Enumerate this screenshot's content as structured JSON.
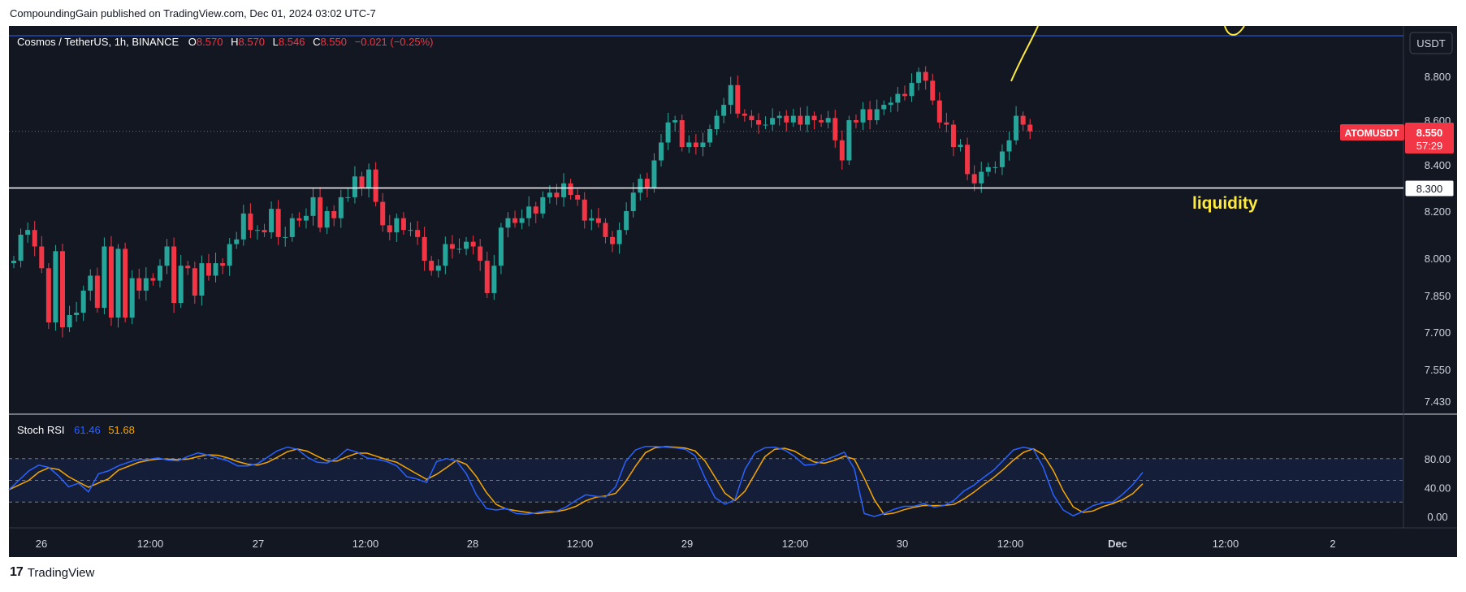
{
  "publisher_line": "CompoundingGain published on TradingView.com, Dec 01, 2024 03:02 UTC-7",
  "footer_brand": "TradingView",
  "colors": {
    "background": "#131722",
    "up": "#26a69a",
    "down": "#f23645",
    "text": "#d1d4dc",
    "stoch_k": "#2962ff",
    "stoch_d": "#f7a600",
    "annotation": "#ffeb3b",
    "price_label": "#f23645"
  },
  "header": {
    "symbol": "Cosmos / TetherUS, 1h, BINANCE",
    "o_label": "O",
    "o": "8.570",
    "h_label": "H",
    "h": "8.570",
    "l_label": "L",
    "l": "8.546",
    "c_label": "C",
    "c": "8.550",
    "change": "−0.021 (−0.25%)"
  },
  "currency_label": "USDT",
  "price_tag": {
    "ticker": "ATOMUSDT",
    "price": "8.550",
    "countdown": "57:29"
  },
  "level_tag": "8.300",
  "annotation_text": "liquidity",
  "stoch": {
    "name": "Stoch RSI",
    "k": "61.46",
    "d": "51.68"
  },
  "chart_data": [
    {
      "type": "candlestick",
      "title": "Cosmos / TetherUS, 1h, BINANCE",
      "y_ticks": [
        "8.800",
        "8.600",
        "8.400",
        "8.200",
        "8.000",
        "7.850",
        "7.700",
        "7.550",
        "7.430"
      ],
      "x_ticks": [
        "26",
        "12:00",
        "27",
        "12:00",
        "28",
        "12:00",
        "29",
        "12:00",
        "30",
        "12:00",
        "Dec",
        "12:00",
        "2"
      ],
      "horizontal_level": 8.3,
      "last_price": 8.55,
      "closes": [
        7.99,
        8.1,
        8.12,
        8.05,
        7.96,
        7.74,
        8.03,
        7.72,
        7.77,
        7.78,
        7.87,
        7.93,
        7.8,
        8.05,
        7.76,
        8.04,
        7.76,
        7.92,
        7.87,
        7.92,
        7.91,
        7.97,
        8.05,
        7.82,
        7.97,
        7.96,
        7.85,
        7.98,
        7.93,
        7.98,
        7.97,
        8.06,
        8.08,
        8.19,
        8.12,
        8.12,
        8.11,
        8.21,
        8.09,
        8.09,
        8.17,
        8.16,
        8.18,
        8.26,
        8.13,
        8.2,
        8.17,
        8.26,
        8.26,
        8.35,
        8.3,
        8.38,
        8.24,
        8.14,
        8.11,
        8.17,
        8.12,
        8.12,
        8.09,
        7.99,
        7.95,
        7.97,
        8.06,
        8.04,
        8.04,
        8.07,
        8.05,
        7.99,
        7.86,
        7.97,
        8.13,
        8.17,
        8.15,
        8.17,
        8.22,
        8.19,
        8.26,
        8.28,
        8.26,
        8.32,
        8.27,
        8.25,
        8.16,
        8.17,
        8.15,
        8.09,
        8.06,
        8.12,
        8.2,
        8.28,
        8.34,
        8.3,
        8.42,
        8.5,
        8.59,
        8.6,
        8.48,
        8.5,
        8.48,
        8.5,
        8.56,
        8.62,
        8.67,
        8.76,
        8.63,
        8.62,
        8.6,
        8.58,
        8.58,
        8.61,
        8.62,
        8.59,
        8.62,
        8.58,
        8.62,
        8.6,
        8.59,
        8.61,
        8.51,
        8.42,
        8.6,
        8.59,
        8.65,
        8.6,
        8.65,
        8.67,
        8.68,
        8.72,
        8.71,
        8.77,
        8.82,
        8.78,
        8.69,
        8.59,
        8.58,
        8.48,
        8.49,
        8.36,
        8.32,
        8.37,
        8.39,
        8.39,
        8.46,
        8.51,
        8.62,
        8.58,
        8.55
      ],
      "k_values": [
        37,
        50,
        63,
        71,
        68,
        56,
        41,
        46,
        34,
        59,
        63,
        70,
        75,
        79,
        79,
        81,
        78,
        77,
        83,
        88,
        85,
        81,
        77,
        70,
        70,
        73,
        82,
        91,
        96,
        93,
        82,
        75,
        74,
        81,
        93,
        89,
        81,
        79,
        76,
        70,
        55,
        52,
        47,
        76,
        80,
        77,
        59,
        30,
        11,
        9,
        11,
        4,
        3,
        5,
        8,
        7,
        13,
        22,
        30,
        28,
        27,
        41,
        76,
        92,
        97,
        97,
        96,
        95,
        93,
        84,
        53,
        26,
        17,
        23,
        65,
        88,
        95,
        96,
        92,
        83,
        71,
        72,
        78,
        83,
        89,
        66,
        4,
        0,
        4,
        10,
        14,
        14,
        18,
        13,
        15,
        22,
        35,
        43,
        54,
        64,
        78,
        92,
        96,
        93,
        68,
        30,
        9,
        1,
        7,
        15,
        19,
        20,
        31,
        44,
        61
      ]
    }
  ]
}
